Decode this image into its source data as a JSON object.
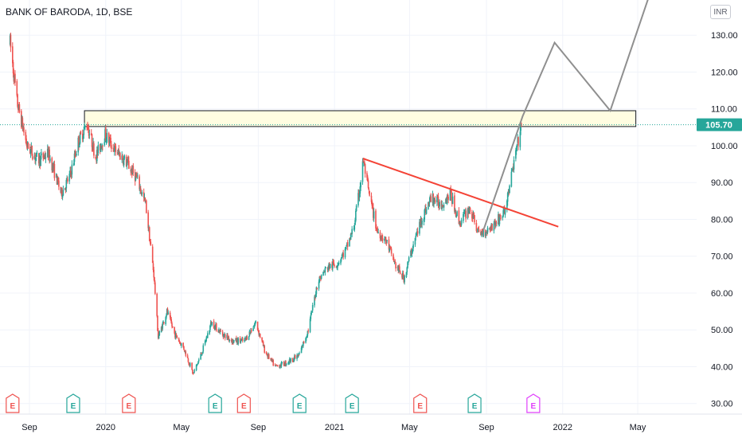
{
  "title": "BANK OF BARODA, 1D, BSE",
  "currency": "INR",
  "colors": {
    "up": "#26a69a",
    "down": "#ef5350",
    "trendline": "#f44336",
    "projection": "#8f8f8f",
    "zone_fill": "#fffde1",
    "price_badge": "#26a69a",
    "earnings_red": "#ef5350",
    "earnings_green": "#26a69a",
    "earnings_magenta": "#e040fb"
  },
  "chart_data": {
    "type": "candlestick",
    "y_ticks": [
      "130.00",
      "120.00",
      "110.00",
      "100.00",
      "90.00",
      "80.00",
      "70.00",
      "60.00",
      "50.00",
      "40.00",
      "30.00"
    ],
    "ylim": [
      28,
      138
    ],
    "x_ticks": [
      "Sep",
      "2020",
      "May",
      "Sep",
      "2021",
      "May",
      "Sep",
      "2022",
      "May"
    ],
    "x_ticks_dates": [
      "2019-09-01",
      "2020-01-01",
      "2020-05-01",
      "2020-09-01",
      "2021-01-01",
      "2021-05-01",
      "2021-09-01",
      "2022-01-01",
      "2022-05-01"
    ],
    "last_price": "105.70",
    "last_price_value": 105.7,
    "price_anchors": [
      [
        "2019-08-01",
        128
      ],
      [
        "2019-08-12",
        112
      ],
      [
        "2019-08-28",
        100
      ],
      [
        "2019-09-15",
        96
      ],
      [
        "2019-10-01",
        98
      ],
      [
        "2019-10-22",
        87
      ],
      [
        "2019-11-05",
        92
      ],
      [
        "2019-11-18",
        101
      ],
      [
        "2019-12-02",
        106
      ],
      [
        "2019-12-16",
        97
      ],
      [
        "2019-12-31",
        103
      ],
      [
        "2020-01-15",
        99
      ],
      [
        "2020-02-01",
        96
      ],
      [
        "2020-02-20",
        91
      ],
      [
        "2020-03-05",
        84
      ],
      [
        "2020-03-18",
        65
      ],
      [
        "2020-03-25",
        48
      ],
      [
        "2020-04-08",
        55
      ],
      [
        "2020-04-20",
        49
      ],
      [
        "2020-05-05",
        45
      ],
      [
        "2020-05-20",
        38
      ],
      [
        "2020-06-03",
        44
      ],
      [
        "2020-06-18",
        52
      ],
      [
        "2020-07-05",
        49
      ],
      [
        "2020-07-22",
        47
      ],
      [
        "2020-08-10",
        47
      ],
      [
        "2020-08-28",
        52
      ],
      [
        "2020-09-12",
        44
      ],
      [
        "2020-09-28",
        40
      ],
      [
        "2020-10-15",
        41
      ],
      [
        "2020-11-05",
        43
      ],
      [
        "2020-11-20",
        50
      ],
      [
        "2020-12-05",
        63
      ],
      [
        "2020-12-20",
        67
      ],
      [
        "2021-01-05",
        68
      ],
      [
        "2021-01-20",
        72
      ],
      [
        "2021-02-01",
        78
      ],
      [
        "2021-02-10",
        88
      ],
      [
        "2021-02-16",
        96
      ],
      [
        "2021-02-25",
        87
      ],
      [
        "2021-03-10",
        77
      ],
      [
        "2021-03-25",
        74
      ],
      [
        "2021-04-10",
        67
      ],
      [
        "2021-04-22",
        64
      ],
      [
        "2021-05-05",
        72
      ],
      [
        "2021-05-20",
        80
      ],
      [
        "2021-06-05",
        86
      ],
      [
        "2021-06-20",
        84
      ],
      [
        "2021-07-05",
        87
      ],
      [
        "2021-07-20",
        79
      ],
      [
        "2021-08-05",
        83
      ],
      [
        "2021-08-20",
        76
      ],
      [
        "2021-09-01",
        77
      ],
      [
        "2021-09-15",
        79
      ],
      [
        "2021-09-30",
        82
      ],
      [
        "2021-10-08",
        89
      ],
      [
        "2021-10-18",
        98
      ],
      [
        "2021-10-27",
        105.7
      ]
    ],
    "resistance_zone": {
      "top": 109.5,
      "bottom": 105.2,
      "start": "2019-11-28",
      "end": "2022-04-28"
    },
    "trendline": {
      "start": [
        "2021-02-16",
        96.5
      ],
      "end": [
        "2021-12-25",
        78
      ]
    },
    "projection": [
      [
        "2021-08-27",
        77
      ],
      [
        "2021-10-29",
        108
      ],
      [
        "2021-12-19",
        128
      ],
      [
        "2022-03-18",
        109.5
      ],
      [
        "2022-05-18",
        140
      ]
    ],
    "earnings": [
      {
        "date": "2019-08-05",
        "label": "E",
        "color": "earnings_red"
      },
      {
        "date": "2019-11-10",
        "label": "E",
        "color": "earnings_green"
      },
      {
        "date": "2020-02-07",
        "label": "E",
        "color": "earnings_red"
      },
      {
        "date": "2020-06-24",
        "label": "E",
        "color": "earnings_green"
      },
      {
        "date": "2020-08-09",
        "label": "E",
        "color": "earnings_red"
      },
      {
        "date": "2020-11-06",
        "label": "E",
        "color": "earnings_green"
      },
      {
        "date": "2021-01-29",
        "label": "E",
        "color": "earnings_green"
      },
      {
        "date": "2021-05-18",
        "label": "E",
        "color": "earnings_red"
      },
      {
        "date": "2021-08-13",
        "label": "E",
        "color": "earnings_green"
      },
      {
        "date": "2021-11-15",
        "label": "E",
        "color": "earnings_magenta"
      }
    ]
  }
}
